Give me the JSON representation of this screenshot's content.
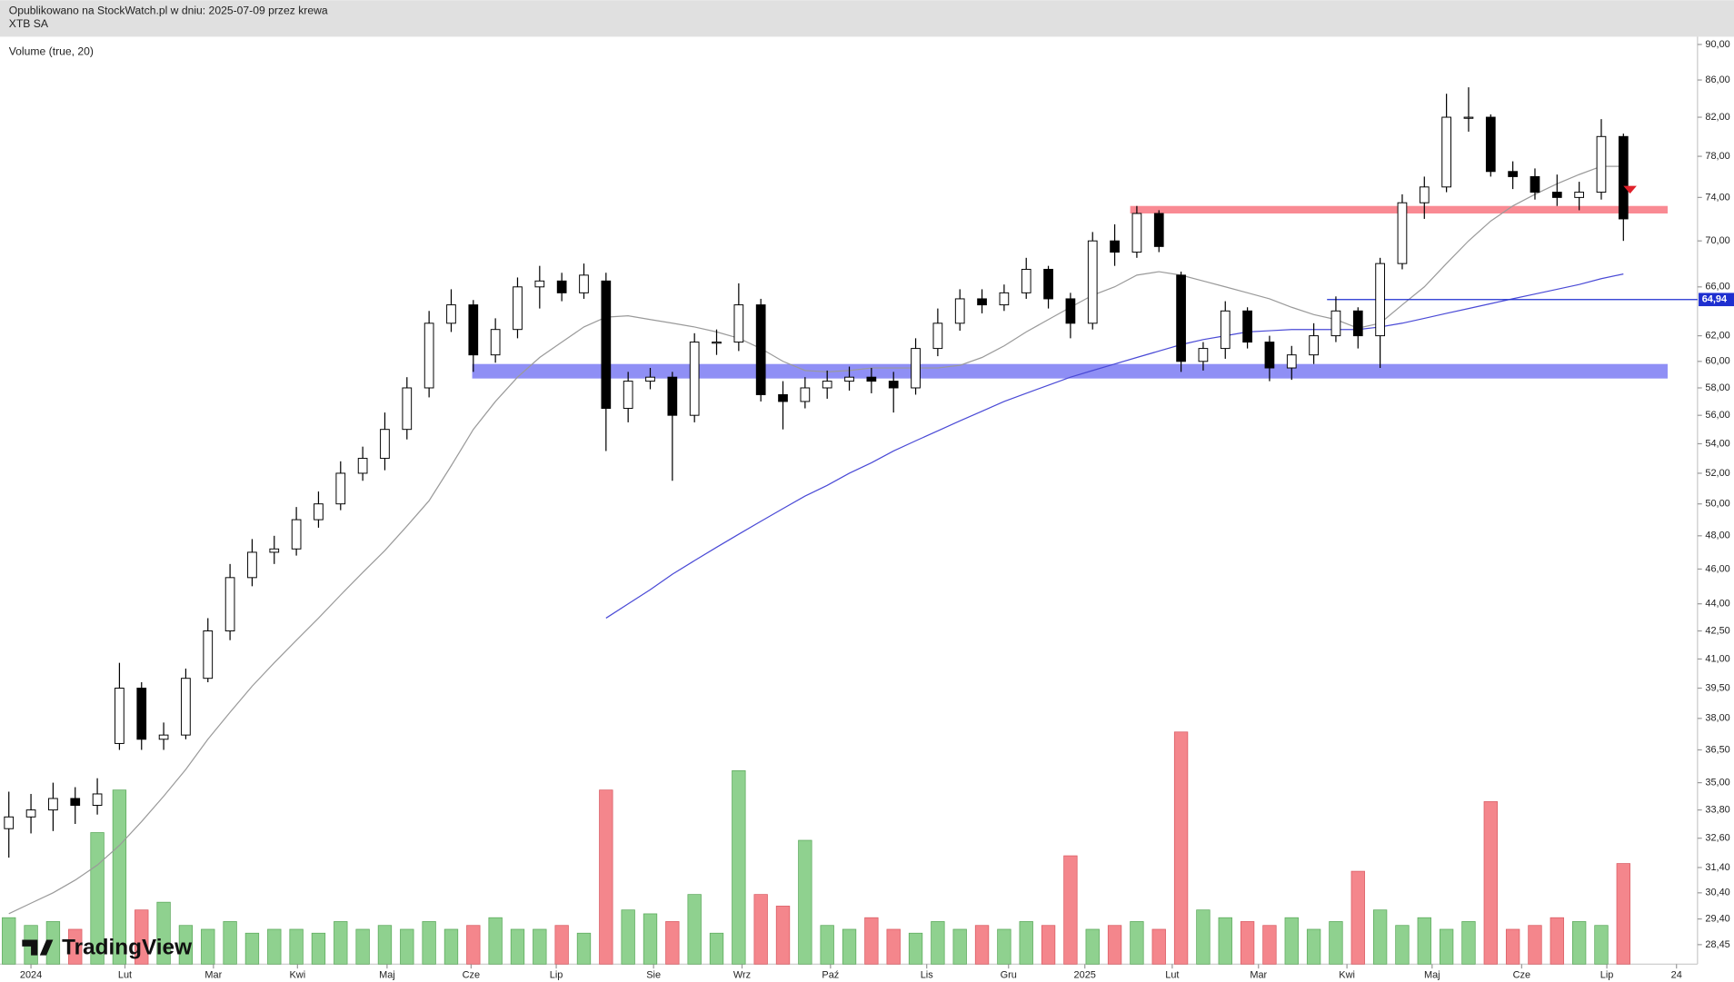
{
  "header": {
    "line1": "Opublikowano na StockWatch.pl w dniu: 2025-07-09 przez krewa",
    "line2": "XTB SA"
  },
  "chart_data": {
    "type": "candlestick",
    "indicator_label": "Volume (true, 20)",
    "logo": "TradingView",
    "open": [
      33.0,
      33.5,
      33.8,
      34.3,
      34.0,
      36.8,
      39.5,
      37.0,
      37.2,
      40.0,
      42.5,
      45.5,
      47.0,
      47.2,
      49.0,
      50.0,
      52.0,
      53.0,
      55.0,
      58.0,
      63.0,
      64.5,
      60.5,
      62.5,
      66.0,
      66.5,
      65.5,
      66.5,
      56.5,
      58.5,
      58.8,
      56.0,
      61.5,
      61.5,
      64.5,
      57.5,
      57.0,
      58.0,
      58.5,
      58.8,
      58.5,
      58.0,
      61.0,
      63.0,
      65.0,
      64.5,
      65.5,
      67.5,
      65.0,
      63.0,
      70.0,
      69.0,
      72.5,
      67.0,
      60.0,
      61.0,
      64.0,
      61.5,
      59.5,
      60.5,
      62.0,
      64.0,
      62.0,
      68.0,
      73.5,
      75.0,
      82.0,
      82.0,
      76.5,
      76.0,
      74.5,
      74.0,
      74.5,
      80.0
    ],
    "high": [
      34.6,
      34.5,
      35.0,
      34.8,
      35.2,
      40.8,
      39.8,
      37.8,
      40.5,
      43.2,
      46.3,
      47.8,
      48.0,
      49.8,
      50.8,
      52.8,
      53.8,
      56.2,
      58.8,
      64.0,
      65.8,
      64.9,
      63.4,
      66.8,
      67.8,
      67.2,
      68.0,
      67.2,
      59.2,
      59.5,
      59.2,
      62.2,
      62.5,
      66.3,
      65.0,
      58.5,
      58.8,
      59.3,
      59.6,
      59.5,
      59.2,
      61.8,
      64.2,
      65.8,
      65.8,
      66.2,
      68.5,
      67.8,
      65.5,
      70.8,
      71.5,
      73.2,
      72.8,
      67.3,
      61.5,
      64.8,
      64.3,
      62.0,
      61.2,
      63.0,
      65.2,
      64.3,
      68.5,
      74.3,
      76.0,
      84.5,
      85.2,
      82.3,
      77.5,
      76.8,
      76.2,
      75.5,
      81.8,
      80.3
    ],
    "low": [
      31.8,
      32.8,
      32.9,
      33.2,
      33.6,
      36.5,
      36.5,
      36.5,
      37.0,
      39.8,
      42.0,
      45.0,
      46.3,
      46.8,
      48.5,
      49.6,
      51.5,
      52.2,
      54.3,
      57.3,
      62.3,
      59.2,
      59.9,
      61.8,
      64.2,
      64.8,
      65.0,
      53.5,
      55.5,
      57.9,
      51.5,
      55.5,
      60.5,
      60.8,
      57.0,
      55.0,
      56.5,
      57.2,
      57.8,
      57.6,
      56.2,
      57.5,
      60.4,
      62.4,
      63.8,
      64.0,
      65.0,
      64.2,
      61.8,
      62.5,
      67.8,
      68.5,
      69.0,
      59.2,
      59.3,
      60.2,
      61.0,
      58.5,
      58.6,
      59.8,
      61.5,
      61.0,
      59.5,
      67.5,
      72.0,
      74.5,
      80.5,
      76.0,
      74.8,
      73.8,
      73.2,
      72.8,
      73.8,
      70.0
    ],
    "close": [
      33.5,
      33.8,
      34.3,
      34.0,
      34.5,
      39.5,
      37.0,
      37.2,
      40.0,
      42.5,
      45.5,
      47.0,
      47.2,
      49.0,
      50.0,
      52.0,
      53.0,
      55.0,
      58.0,
      63.0,
      64.5,
      60.5,
      62.5,
      66.0,
      66.5,
      65.5,
      67.0,
      56.5,
      58.5,
      58.8,
      56.0,
      61.5,
      61.5,
      64.5,
      57.5,
      57.0,
      58.0,
      58.5,
      58.8,
      58.5,
      58.0,
      61.0,
      63.0,
      65.0,
      64.5,
      65.5,
      67.5,
      65.0,
      63.0,
      70.0,
      69.0,
      72.5,
      69.5,
      60.0,
      61.0,
      64.0,
      61.5,
      59.5,
      60.5,
      62.0,
      64.0,
      62.0,
      68.0,
      73.5,
      75.0,
      82.0,
      82.0,
      76.5,
      76.0,
      74.5,
      74.0,
      74.5,
      80.0,
      72.0
    ],
    "volume": [
      12,
      10,
      11,
      9,
      34,
      45,
      14,
      16,
      10,
      9,
      11,
      8,
      9,
      9,
      8,
      11,
      9,
      10,
      9,
      11,
      9,
      10,
      12,
      9,
      9,
      10,
      8,
      45,
      14,
      13,
      11,
      18,
      8,
      50,
      18,
      15,
      32,
      10,
      9,
      12,
      9,
      8,
      11,
      9,
      10,
      9,
      11,
      10,
      28,
      9,
      10,
      11,
      9,
      60,
      14,
      12,
      11,
      10,
      12,
      9,
      11,
      24,
      14,
      10,
      12,
      9,
      11,
      42,
      9,
      10,
      12,
      11,
      10,
      26
    ],
    "up_color": "#ffffff",
    "down_color": "#000000",
    "volume_up_color": "#8fd18f",
    "volume_down_color": "#f4868c",
    "moving_averages": [
      {
        "color": "#9a9a9a",
        "values": [
          29.6,
          30.0,
          30.4,
          30.9,
          31.5,
          32.3,
          33.3,
          34.4,
          35.6,
          37.0,
          38.3,
          39.6,
          40.8,
          42.0,
          43.2,
          44.5,
          45.8,
          47.1,
          48.6,
          50.2,
          52.5,
          55.0,
          57.0,
          58.8,
          60.3,
          61.5,
          62.7,
          63.5,
          63.6,
          63.3,
          63.0,
          62.7,
          62.3,
          61.8,
          61.0,
          60.0,
          59.3,
          59.2,
          59.3,
          59.5,
          59.5,
          59.5,
          59.5,
          59.7,
          60.3,
          61.2,
          62.3,
          63.3,
          64.3,
          65.3,
          66.0,
          67.0,
          67.3,
          67.0,
          66.5,
          66.0,
          65.5,
          65.0,
          64.3,
          63.7,
          63.3,
          62.6,
          63.0,
          64.5,
          66.0,
          68.0,
          70.0,
          71.8,
          73.2,
          74.3,
          75.3,
          76.2,
          77.0,
          77.0
        ]
      },
      {
        "color": "#4a4ad6",
        "values": [
          null,
          null,
          null,
          null,
          null,
          null,
          null,
          null,
          null,
          null,
          null,
          null,
          null,
          null,
          null,
          null,
          null,
          null,
          null,
          null,
          null,
          null,
          null,
          null,
          null,
          null,
          null,
          43.2,
          44.0,
          44.8,
          45.7,
          46.5,
          47.3,
          48.1,
          48.9,
          49.7,
          50.5,
          51.2,
          52.0,
          52.7,
          53.5,
          54.2,
          54.9,
          55.6,
          56.3,
          57.0,
          57.6,
          58.2,
          58.8,
          59.3,
          59.8,
          60.3,
          60.8,
          61.3,
          61.7,
          62.0,
          62.3,
          62.4,
          62.5,
          62.5,
          62.5,
          62.5,
          62.7,
          63.0,
          63.4,
          63.8,
          64.2,
          64.6,
          65.0,
          65.4,
          65.8,
          66.2,
          66.7,
          67.1
        ]
      }
    ],
    "zones": [
      {
        "from": 72.5,
        "to": 73.2,
        "color": "#f98a93"
      },
      {
        "from": 58.7,
        "to": 59.8,
        "color": "#8f8ff5"
      }
    ],
    "price_line": {
      "value": 64.94,
      "label": "64,94",
      "color": "#1e2fd0"
    },
    "log_scale": true,
    "ylim": [
      27.75,
      90.9
    ],
    "yticks": [
      {
        "value": 90,
        "label": "90,00"
      },
      {
        "value": 86,
        "label": "86,00"
      },
      {
        "value": 82,
        "label": "82,00"
      },
      {
        "value": 78,
        "label": "78,00"
      },
      {
        "value": 74,
        "label": "74,00"
      },
      {
        "value": 70,
        "label": "70,00"
      },
      {
        "value": 66,
        "label": "66,00"
      },
      {
        "value": 62,
        "label": "62,00"
      },
      {
        "value": 60,
        "label": "60,00"
      },
      {
        "value": 58,
        "label": "58,00"
      },
      {
        "value": 56,
        "label": "56,00"
      },
      {
        "value": 54,
        "label": "54,00"
      },
      {
        "value": 52,
        "label": "52,00"
      },
      {
        "value": 50,
        "label": "50,00"
      },
      {
        "value": 48,
        "label": "48,00"
      },
      {
        "value": 46,
        "label": "46,00"
      },
      {
        "value": 44,
        "label": "44,00"
      },
      {
        "value": 42.5,
        "label": "42,50"
      },
      {
        "value": 41,
        "label": "41,00"
      },
      {
        "value": 39.5,
        "label": "39,50"
      },
      {
        "value": 38,
        "label": "38,00"
      },
      {
        "value": 36.5,
        "label": "36,50"
      },
      {
        "value": 35,
        "label": "35,00"
      },
      {
        "value": 33.8,
        "label": "33,80"
      },
      {
        "value": 32.6,
        "label": "32,60"
      },
      {
        "value": 31.4,
        "label": "31,40"
      },
      {
        "value": 30.4,
        "label": "30,40"
      },
      {
        "value": 29.4,
        "label": "29,40"
      },
      {
        "value": 28.45,
        "label": "28,45"
      }
    ],
    "xlim": [
      -0.4,
      76.35
    ],
    "xticks": [
      {
        "value": 1,
        "label": "2024"
      },
      {
        "value": 5.25,
        "label": "Lut"
      },
      {
        "value": 9.25,
        "label": "Mar"
      },
      {
        "value": 13.05,
        "label": "Kwi"
      },
      {
        "value": 17.1,
        "label": "Maj"
      },
      {
        "value": 20.9,
        "label": "Cze"
      },
      {
        "value": 24.75,
        "label": "Lip"
      },
      {
        "value": 29.15,
        "label": "Sie"
      },
      {
        "value": 33.15,
        "label": "Wrz"
      },
      {
        "value": 37.15,
        "label": "Paź"
      },
      {
        "value": 41.5,
        "label": "Lis"
      },
      {
        "value": 45.2,
        "label": "Gru"
      },
      {
        "value": 48.65,
        "label": "2025"
      },
      {
        "value": 52.6,
        "label": "Lut"
      },
      {
        "value": 56.5,
        "label": "Mar"
      },
      {
        "value": 60.5,
        "label": "Kwi"
      },
      {
        "value": 64.35,
        "label": "Maj"
      },
      {
        "value": 68.4,
        "label": "Cze"
      },
      {
        "value": 72.25,
        "label": "Lip"
      },
      {
        "value": 75.4,
        "label": "24"
      }
    ]
  }
}
